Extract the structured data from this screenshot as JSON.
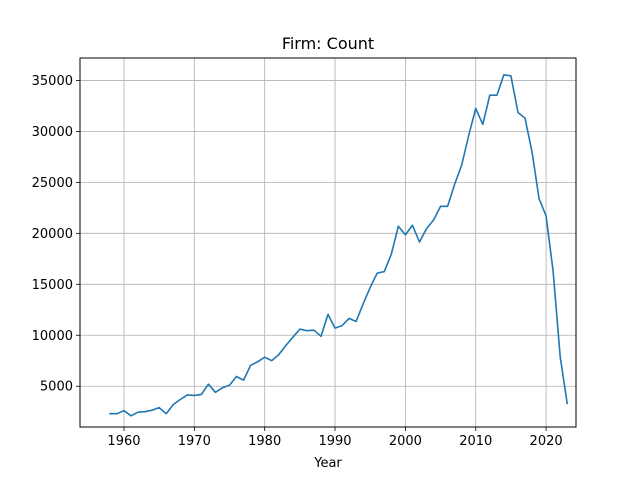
{
  "chart_data": {
    "type": "line",
    "title": "Firm: Count",
    "xlabel": "Year",
    "ylabel": "",
    "xlim": [
      1953.75,
      2024.25
    ],
    "ylim": [
      1000,
      37200
    ],
    "grid": true,
    "legend": "none",
    "line_color": "#1f77b4",
    "x_ticks": [
      1960,
      1970,
      1980,
      1990,
      2000,
      2010,
      2020
    ],
    "y_ticks": [
      5000,
      10000,
      15000,
      20000,
      25000,
      30000,
      35000
    ],
    "series": [
      {
        "x": [
          1958,
          1959,
          1960,
          1961,
          1962,
          1963,
          1964,
          1965,
          1966,
          1967,
          1968,
          1969,
          1970,
          1971,
          1972,
          1973,
          1974,
          1975,
          1976,
          1977,
          1978,
          1979,
          1980,
          1981,
          1982,
          1983,
          1984,
          1985,
          1986,
          1987,
          1988,
          1989,
          1990,
          1991,
          1992,
          1993,
          1994,
          1995,
          1996,
          1997,
          1998,
          1999,
          2000,
          2001,
          2002,
          2003,
          2004,
          2005,
          2006,
          2007,
          2008,
          2009,
          2010,
          2011,
          2012,
          2013,
          2014,
          2015,
          2016,
          2017,
          2018,
          2019,
          2020,
          2021,
          2022,
          2023
        ],
        "values": [
          2300,
          2300,
          2600,
          2100,
          2450,
          2500,
          2650,
          2900,
          2300,
          3200,
          3700,
          4150,
          4100,
          4200,
          5200,
          4400,
          4850,
          5100,
          5950,
          5600,
          7050,
          7400,
          7850,
          7500,
          8100,
          9000,
          9800,
          10600,
          10450,
          10500,
          9900,
          12050,
          10700,
          10950,
          11650,
          11350,
          13100,
          14700,
          16100,
          16250,
          17950,
          20700,
          19850,
          20800,
          19150,
          20450,
          21300,
          22650,
          22650,
          24800,
          26700,
          29600,
          32250,
          30700,
          33550,
          33550,
          35550,
          35450,
          31850,
          31300,
          28000,
          23400,
          21700,
          16300,
          7900,
          3300
        ]
      }
    ]
  }
}
